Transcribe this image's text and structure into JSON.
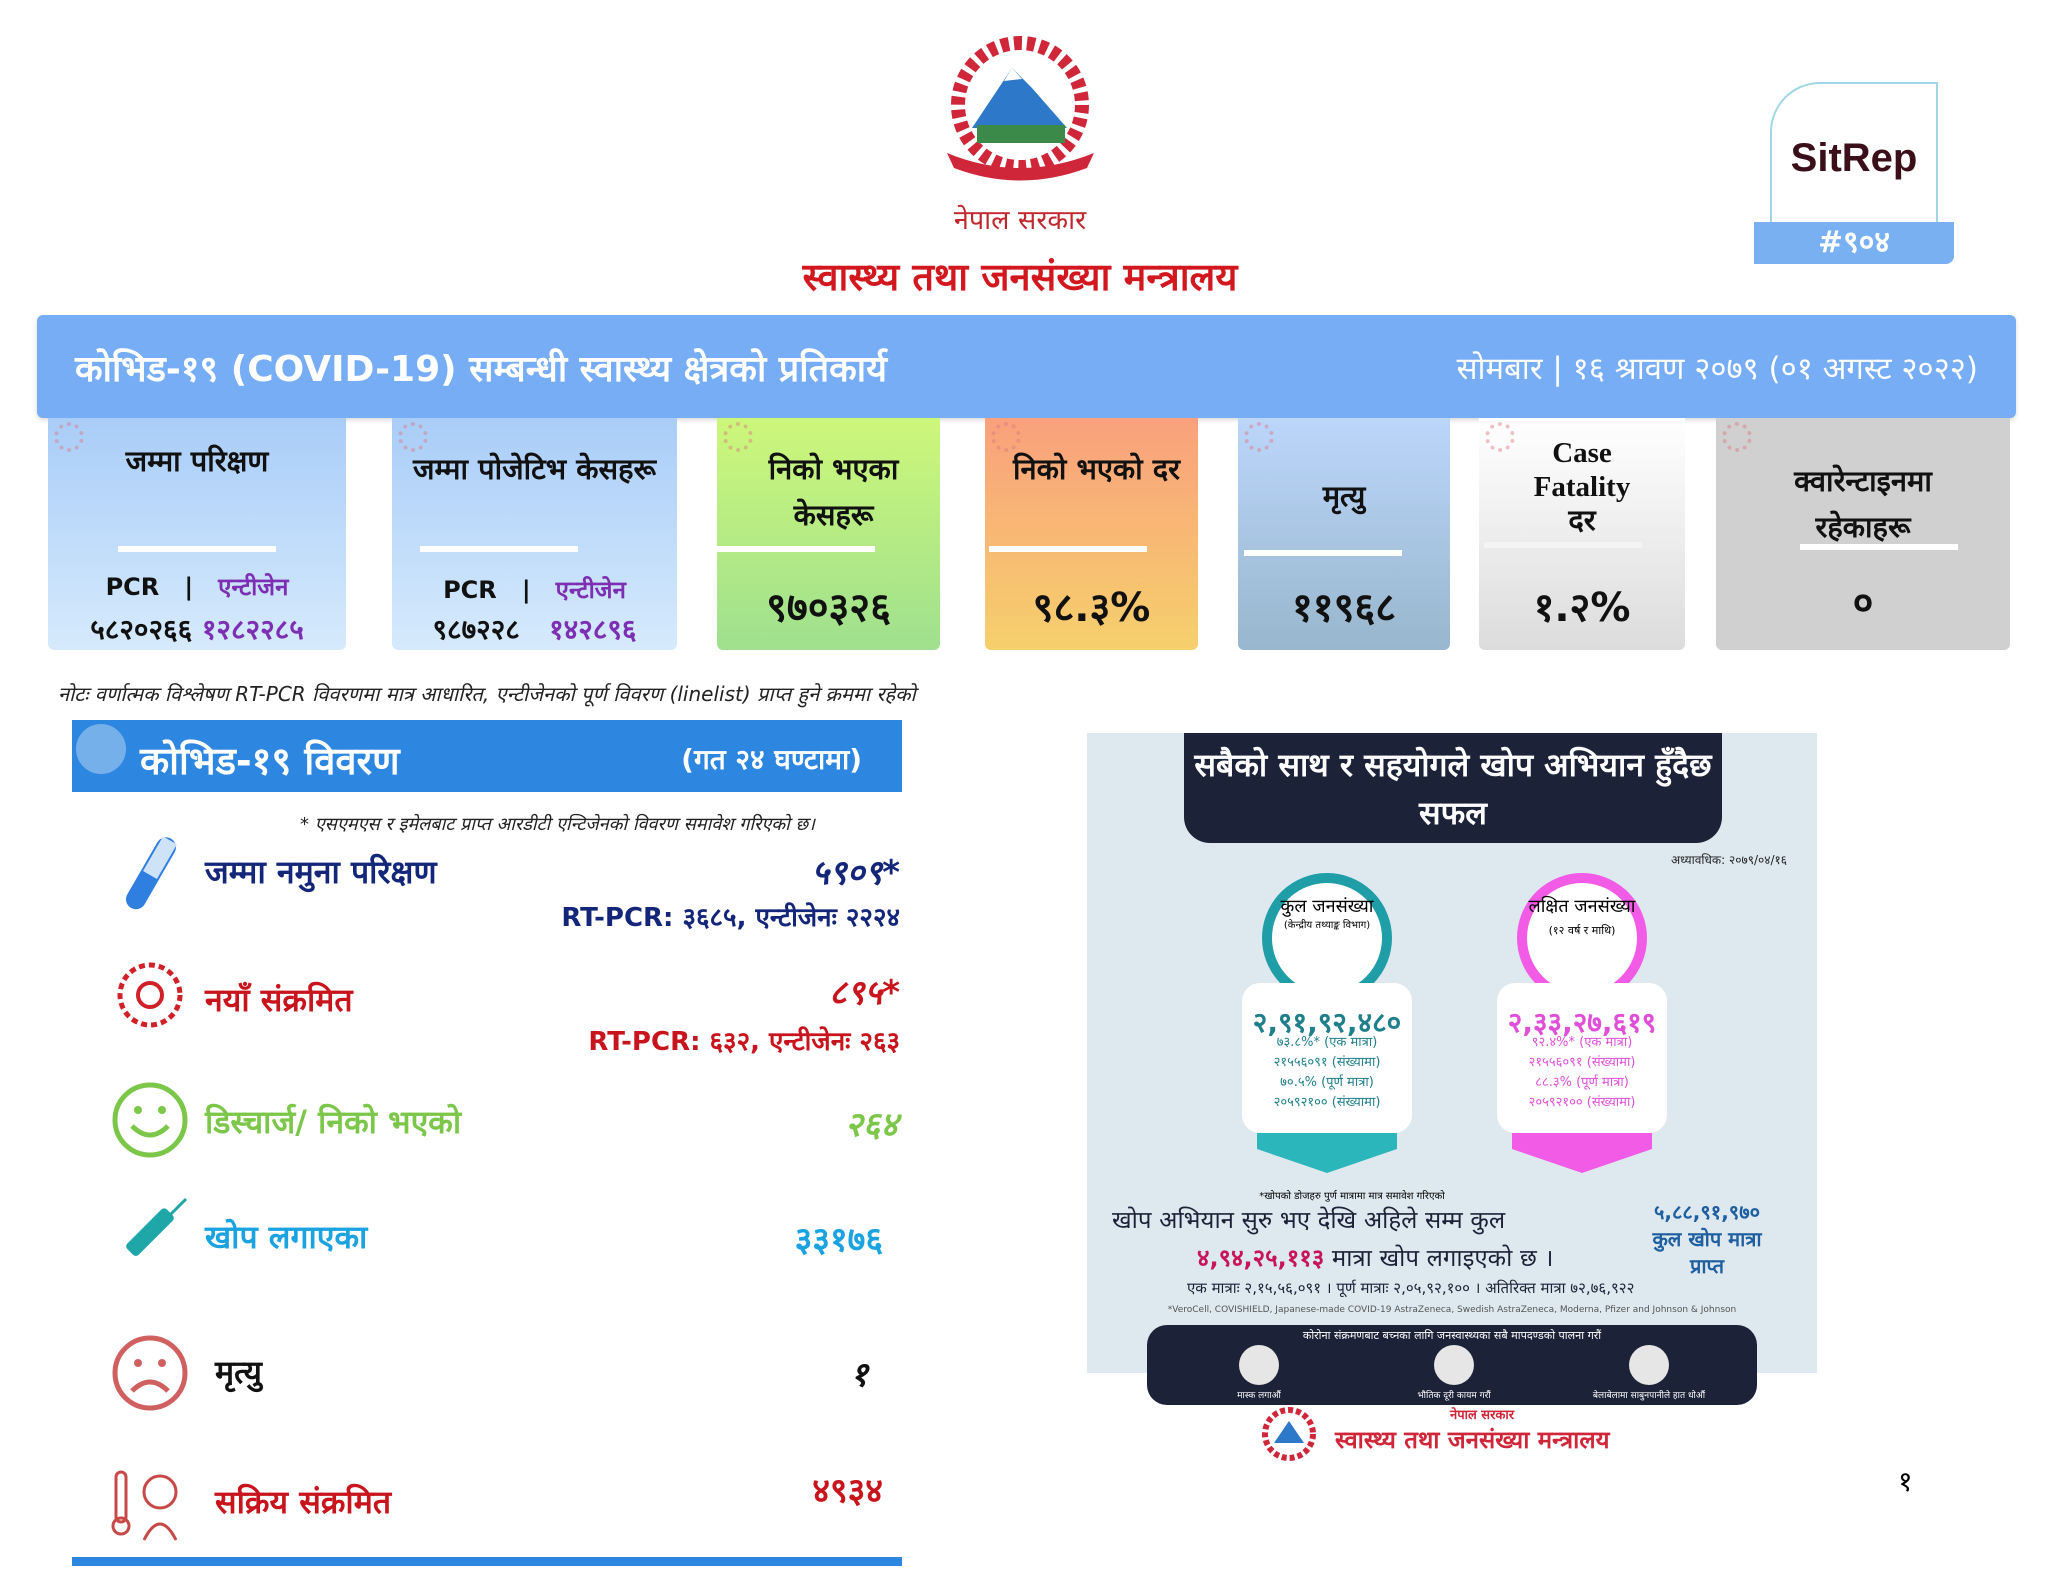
{
  "header": {
    "government": "नेपाल सरकार",
    "ministry": "स्वास्थ्य तथा जनसंख्या मन्त्रालय",
    "sitrep_label": "SitRep",
    "sitrep_number": "#९०४"
  },
  "band": {
    "title": "कोभिड-१९ (COVID-19) सम्बन्धी स्वास्थ्य क्षेत्रको प्रतिकार्य",
    "date": "सोमबार | १६ श्रावण २०७९ (०१ अगस्ट २०२२)"
  },
  "cards": [
    {
      "title": "जम्मा परिक्षण",
      "pcr_label": "PCR",
      "sep": "|",
      "antigen_label": "एन्टीजेन",
      "pcr_value": "५८२०२६६",
      "antigen_value": "१२८२२८५"
    },
    {
      "title": "जम्मा पोजेटिभ केसहरू",
      "pcr_label": "PCR",
      "sep": "|",
      "antigen_label": "एन्टीजेन",
      "pcr_value": "९८७२२८",
      "antigen_value": "१४२८९६"
    },
    {
      "title": "निको भएका केसहरू",
      "value": "९७०३२६"
    },
    {
      "title": "निको भएको दर",
      "value": "९८.३%"
    },
    {
      "title": "मृत्यु",
      "value": "११९६८"
    },
    {
      "title": "Case Fatality दर",
      "value": "१.२%"
    },
    {
      "title": "क्वारेन्टाइनमा रहेकाहरू",
      "value": "०"
    }
  ],
  "note": "नोटः वर्णात्मक विश्लेषण RT-PCR विवरणमा मात्र आधारित, एन्टीजेनको पूर्ण विवरण (linelist) प्राप्त हुने क्रममा रहेको",
  "details": {
    "title": "कोभिड-१९ विवरण",
    "subtitle": "(गत २४ घण्टामा)",
    "footnote": "* एसएमएस र इमेलबाट प्राप्त आरडीटी एन्टिजेनको विवरण समावेश गरिएको छ।",
    "rows": [
      {
        "label": "जम्मा नमुना परिक्षण",
        "value": "५९०९*",
        "sub": "RT-PCR: ३६८५, एन्टीजेनः २२२४",
        "color": "#14267a"
      },
      {
        "label": "नयाँ संक्रमित",
        "value": "८९५*",
        "sub": "RT-PCR: ६३२,  एन्टीजेनः २६३",
        "color": "#c8141c"
      },
      {
        "label": "डिस्चार्ज/ निको भएको",
        "value": "२६४",
        "color": "#7cc74a"
      },
      {
        "label": "खोप लगाएका",
        "value": "३३१७६",
        "color": "#1aa3e0"
      },
      {
        "label": "मृत्यु",
        "value": "१",
        "color": "#111111"
      },
      {
        "label": "सक्रिय संक्रमित",
        "value": "४९३४",
        "color": "#c8141c"
      }
    ]
  },
  "poster": {
    "title": "सबैको साथ र सहयोगले खोप अभियान हुँदैछ सफल",
    "updated": "अध्यावधिक: २०७९/०४/१६",
    "total": {
      "label": "कुल जनसंख्या",
      "source": "(केन्द्रीय तथ्याङ्क विभाग)",
      "value": "२,९१,९२,४८०",
      "pct1": "७३.८%* (एक मात्रा)",
      "n1": "२१५५६०९१ (संख्यामा)",
      "pct2": "७०.५% (पूर्ण मात्रा)",
      "n2": "२०५९२१०० (संख्यामा)"
    },
    "target": {
      "label": "लक्षित जनसंख्या",
      "source": "(१२ वर्ष र माथि)",
      "value": "२,३३,२७,६१९",
      "pct1": "९२.४%* (एक मात्रा)",
      "n1": "२१५५६०९१ (संख्यामा)",
      "pct2": "८८.३% (पूर्ण मात्रा)",
      "n2": "२०५९२१०० (संख्यामा)"
    },
    "dose_note": "*खोपको डोजहरु पुर्ण मात्रामा मात्र समावेश गरिएको",
    "line1": "खोप अभियान सुरु भए देखि अहिले सम्म कुल",
    "line2_value": "४,९४,२५,११३",
    "line2_rest": "मात्रा खोप लगाइएको छ ।",
    "received_value": "५,८८,९१,९७०",
    "received_label": "कुल खोप मात्रा प्राप्त",
    "breakdown": "एक मात्राः २,१५,५६,०९१ । पूर्ण मात्राः २,०५,९२,१०० । अतिरिक्त मात्रा ७२,७६,९२२",
    "vaccines": "*VeroCell, COVISHIELD, Japanese-made COVID-19 AstraZeneca, Swedish AstraZeneca, Moderna, Pfizer and Johnson & Johnson",
    "advice": "कोरोना संक्रमणबाट बच्नका लागि जनस्वास्थ्यका सबै मापदण्डको पालना गरौं",
    "tips": [
      "मास्क लगाऔं",
      "भौतिक दूरी कायम गरौं",
      "बेलाबेलामा साबुनपानीले हात धोऔं"
    ],
    "gov": "नेपाल सरकार",
    "ministry": "स्वास्थ्य तथा जनसंख्या मन्त्रालय"
  },
  "page_number": "१",
  "colors": {
    "band": "#76adf5",
    "panel": "#2d86e0",
    "red": "#d3171e",
    "teal": "#1f9ea8",
    "pink": "#f25be6"
  }
}
